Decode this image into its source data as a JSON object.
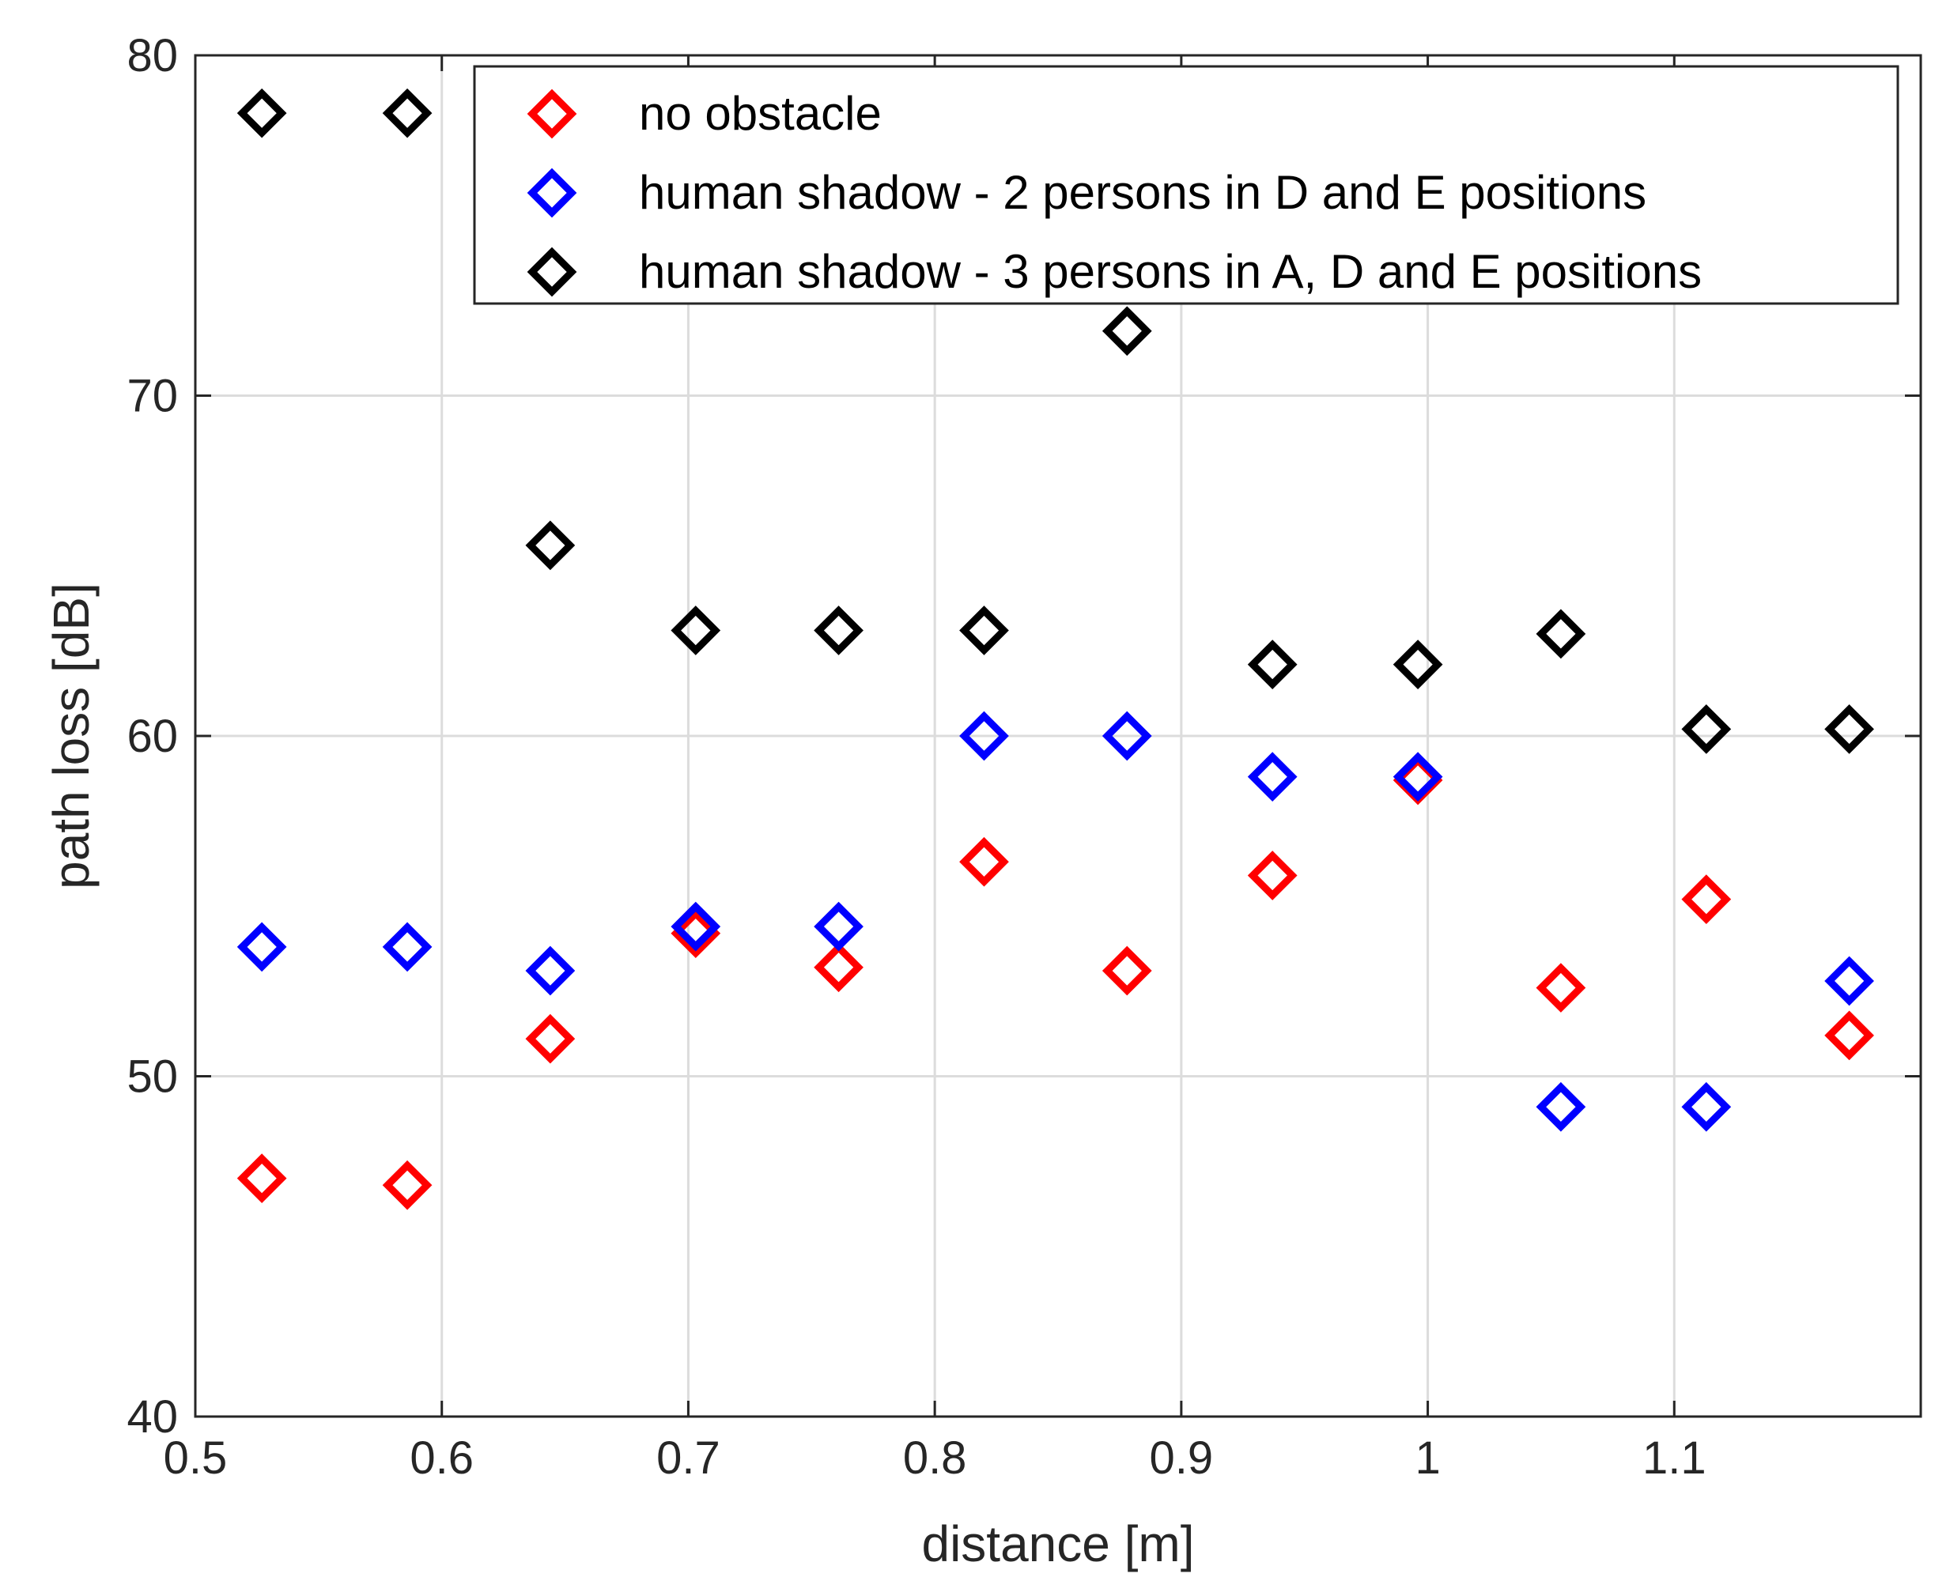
{
  "chart_data": {
    "type": "scatter",
    "xlabel": "distance [m]",
    "ylabel": "path loss [dB]",
    "xlim": [
      0.5,
      1.2
    ],
    "ylim": [
      40,
      80
    ],
    "xticks": [
      0.5,
      0.6,
      0.7,
      0.8,
      0.9,
      1.0,
      1.1
    ],
    "xtick_labels": [
      "0.5",
      "0.6",
      "0.7",
      "0.8",
      "0.9",
      "1",
      "1.1"
    ],
    "yticks": [
      40,
      50,
      60,
      70,
      80
    ],
    "ytick_labels": [
      "40",
      "50",
      "60",
      "70",
      "80"
    ],
    "grid": true,
    "legend_position": "top-right",
    "x": [
      0.527,
      0.586,
      0.644,
      0.703,
      0.761,
      0.82,
      0.878,
      0.937,
      0.996,
      1.054,
      1.113,
      1.171
    ],
    "series": [
      {
        "name": "no obstacle",
        "color": "#ff0000",
        "marker": "diamond",
        "values": [
          47.0,
          46.8,
          51.1,
          54.2,
          53.2,
          56.3,
          53.1,
          55.9,
          58.7,
          52.6,
          55.2,
          51.2
        ]
      },
      {
        "name": "human shadow - 2 persons in D and E positions",
        "color": "#0000ff",
        "marker": "diamond",
        "values": [
          53.8,
          53.8,
          53.1,
          54.4,
          54.4,
          60.0,
          60.0,
          58.8,
          58.8,
          49.1,
          49.1,
          52.8
        ]
      },
      {
        "name": "human shadow - 3 persons in A, D and E positions",
        "color": "#000000",
        "marker": "diamond",
        "values": [
          78.3,
          78.3,
          65.6,
          63.1,
          63.1,
          63.1,
          71.9,
          62.1,
          62.1,
          63.0,
          60.2,
          60.2
        ]
      }
    ]
  }
}
